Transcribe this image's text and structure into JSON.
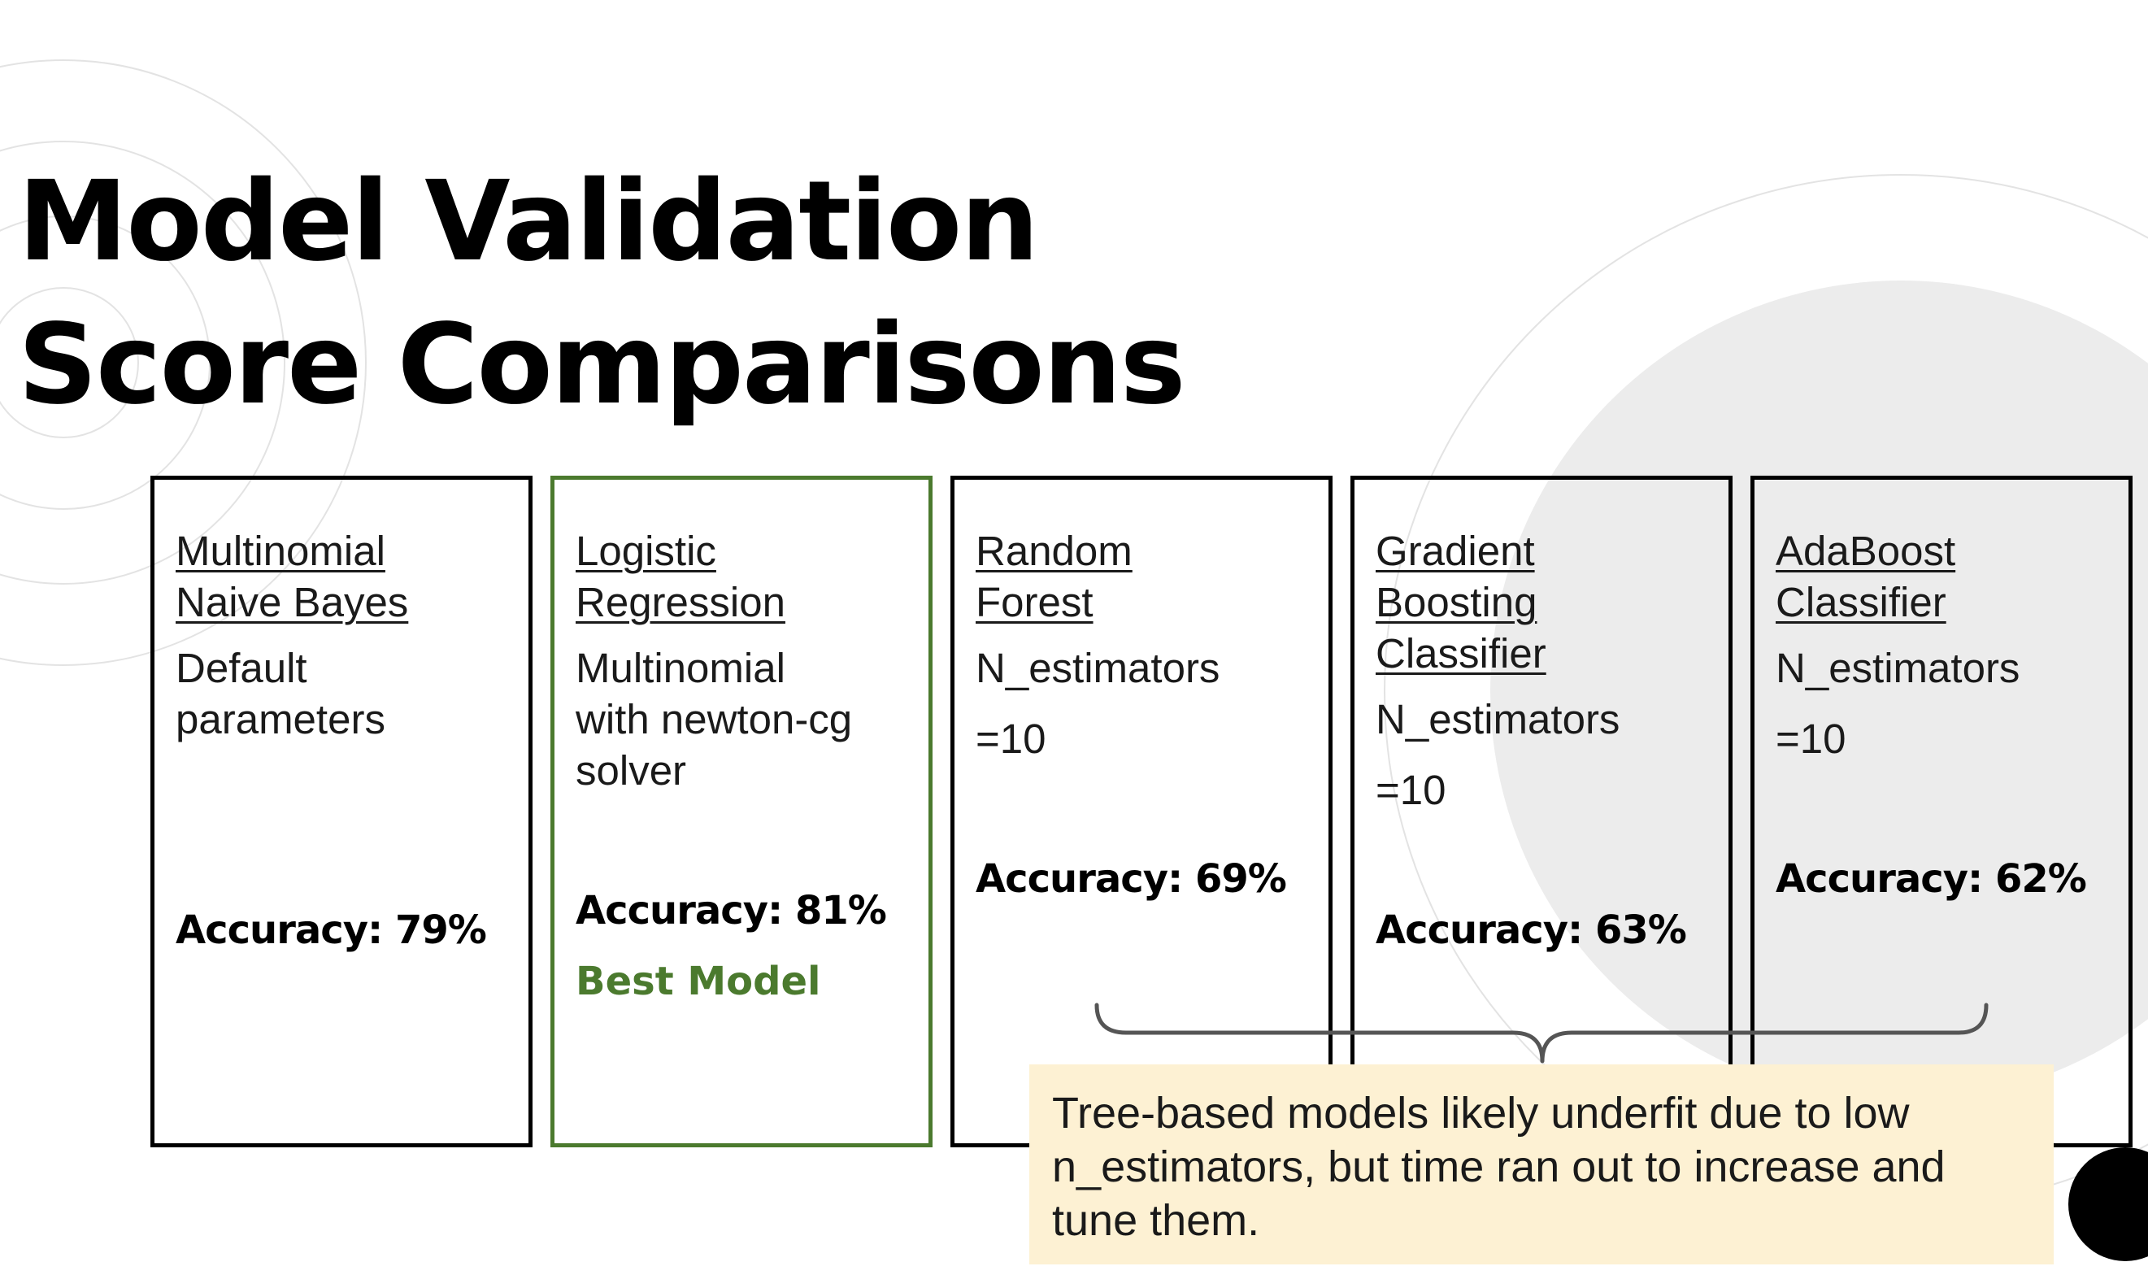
{
  "slide": {
    "title_line_1": "Model Validation",
    "title_line_2": "Score Comparisons"
  },
  "models": [
    {
      "name": "Multinomial\nNaive Bayes",
      "params": "Default\nparameters",
      "accuracy": "Accuracy: 79%",
      "badge": ""
    },
    {
      "name": "Logistic\nRegression",
      "params": "Multinomial\nwith newton-cg\nsolver",
      "accuracy": "Accuracy: 81%",
      "badge": "Best Model"
    },
    {
      "name": "Random\nForest",
      "params": "N_estimators\n=10",
      "accuracy": "Accuracy: 69%",
      "badge": ""
    },
    {
      "name": "Gradient\nBoosting\nClassifier",
      "params": "N_estimators\n=10",
      "accuracy": "Accuracy: 63%",
      "badge": ""
    },
    {
      "name": "AdaBoost\nClassifier",
      "params": "N_estimators\n=10",
      "accuracy": "Accuracy: 62%",
      "badge": ""
    }
  ],
  "note": {
    "text": "Tree-based models likely underfit due to low n_estimators, but time ran out to increase and tune them."
  },
  "colors": {
    "best_model": "#4b7a2e",
    "note_background": "#fdf1d3",
    "decor_circle": "#ececec"
  }
}
